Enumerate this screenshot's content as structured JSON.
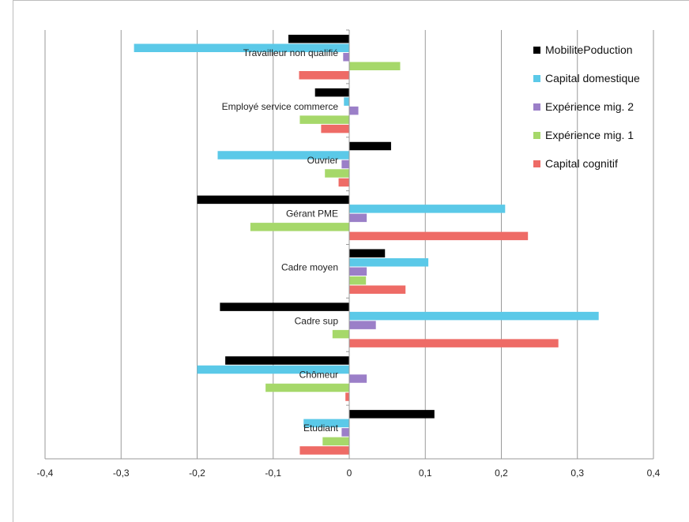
{
  "chart_data": {
    "type": "bar",
    "orientation": "horizontal",
    "title": "",
    "xlabel": "",
    "ylabel": "",
    "xlim": [
      -0.4,
      0.4
    ],
    "x_ticks": [
      "-0,4",
      "-0,3",
      "-0,2",
      "-0,1",
      "0",
      "0,1",
      "0,2",
      "0,3",
      "0,4"
    ],
    "grid": "vertical",
    "legend_position": "top-right",
    "categories": [
      "Travailleur non qualifié",
      "Employé service commerce",
      "Ouvrier",
      "Gérant PME",
      "Cadre moyen",
      "Cadre sup",
      "Chômeur",
      "Etudiant"
    ],
    "series": [
      {
        "name": "MobilitePoduction",
        "color": "#000000",
        "values": [
          -0.08,
          -0.045,
          0.055,
          -0.2,
          0.047,
          -0.17,
          -0.163,
          0.112
        ]
      },
      {
        "name": "Capital domestique",
        "color": "#5bc9e8",
        "values": [
          -0.283,
          -0.007,
          -0.173,
          0.205,
          0.104,
          0.328,
          -0.2,
          -0.06
        ]
      },
      {
        "name": "Expérience mig. 2",
        "color": "#9b7fc8",
        "values": [
          -0.008,
          0.012,
          -0.01,
          0.023,
          0.023,
          0.035,
          0.023,
          -0.01
        ]
      },
      {
        "name": "Expérience mig. 1",
        "color": "#a6d86a",
        "values": [
          0.067,
          -0.065,
          -0.032,
          -0.13,
          0.022,
          -0.022,
          -0.11,
          -0.035
        ]
      },
      {
        "name": "Capital cognitif",
        "color": "#ee6b66",
        "values": [
          -0.066,
          -0.037,
          -0.014,
          0.235,
          0.074,
          0.275,
          -0.005,
          -0.065
        ]
      }
    ]
  }
}
